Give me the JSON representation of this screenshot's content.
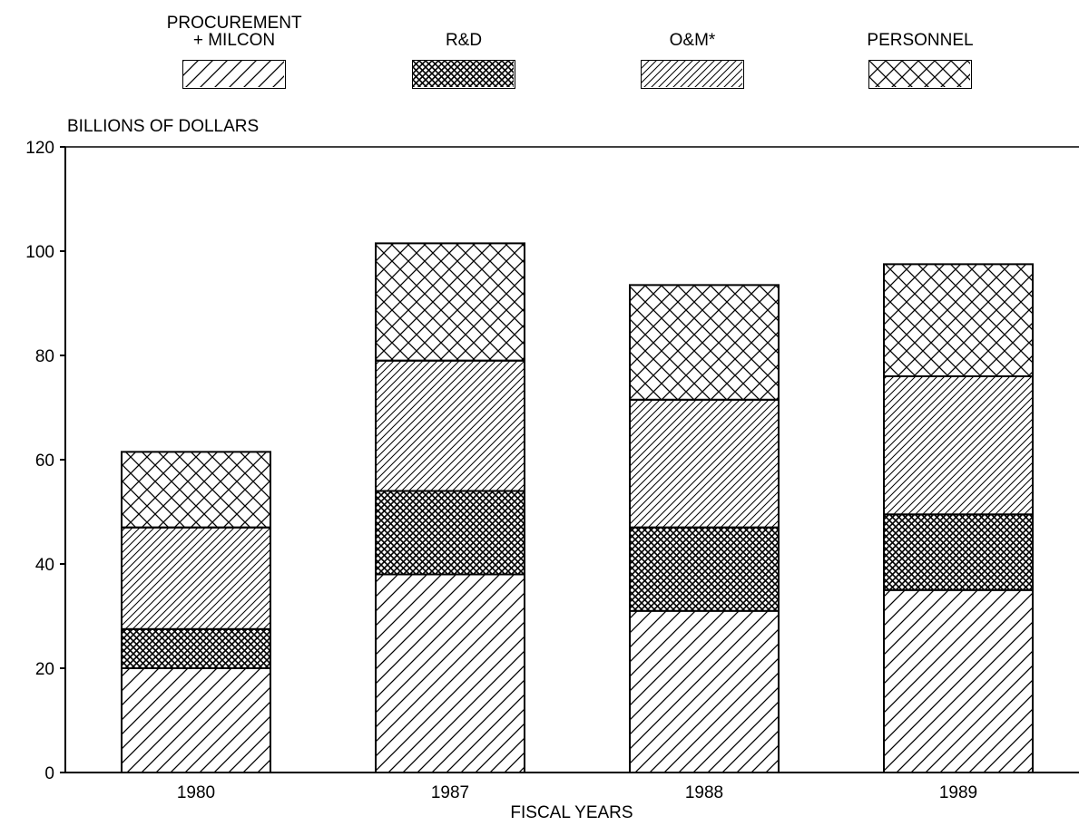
{
  "chart_data": {
    "type": "stacked-bar",
    "y_label": "BILLIONS OF DOLLARS",
    "x_label": "FISCAL YEARS",
    "categories": [
      "1980",
      "1987",
      "1988",
      "1989"
    ],
    "ylim": [
      0,
      120
    ],
    "yticks": [
      0,
      20,
      40,
      60,
      80,
      100,
      120
    ],
    "series": [
      {
        "name": "PROCUREMENT + MILCON",
        "color": "#000000",
        "hatch": "diagonal",
        "values": [
          20,
          38,
          31,
          35
        ]
      },
      {
        "name": "R&D",
        "color": "#000000",
        "hatch": "dense-cross",
        "values": [
          7.5,
          16,
          16,
          14.5
        ]
      },
      {
        "name": "O&M*",
        "color": "#000000",
        "hatch": "dense-diagonal",
        "values": [
          19.5,
          25,
          24.5,
          26.5
        ]
      },
      {
        "name": "PERSONNEL",
        "color": "#000000",
        "hatch": "cross",
        "values": [
          14.5,
          22.5,
          22,
          21.5
        ]
      }
    ]
  }
}
